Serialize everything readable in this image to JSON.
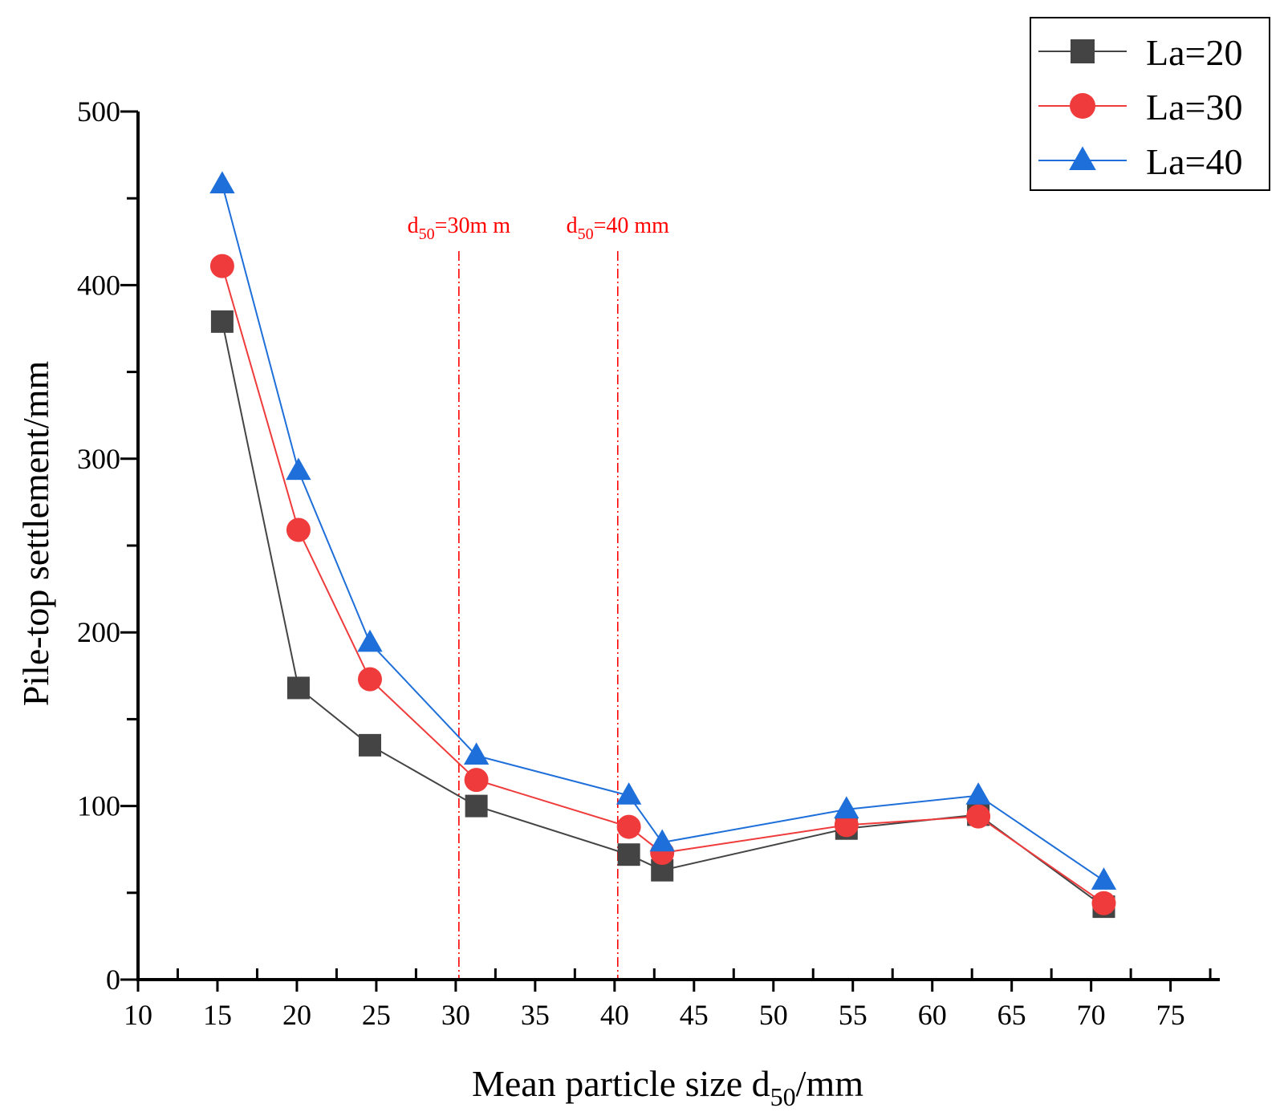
{
  "chart_data": {
    "type": "line",
    "xlabel": "Mean particle size d50/mm",
    "xlabel_parts": {
      "main": "Mean particle size d",
      "sub": "50",
      "tail": "/mm"
    },
    "ylabel": "Pile-top settlement/mm",
    "xlim": [
      10,
      78
    ],
    "ylim": [
      0,
      500
    ],
    "x_ticks": [
      10,
      15,
      20,
      25,
      30,
      35,
      40,
      45,
      50,
      55,
      60,
      65,
      70,
      75
    ],
    "x_tick_labels": [
      "10",
      "15",
      "20",
      "25",
      "30",
      "35",
      "40",
      "45",
      "50",
      "55",
      "60",
      "65",
      "70",
      "75"
    ],
    "y_ticks": [
      0,
      100,
      200,
      300,
      400,
      500
    ],
    "y_tick_labels": [
      "0",
      "100",
      "200",
      "300",
      "400",
      "500"
    ],
    "legend_position": "top-right",
    "series": [
      {
        "name": "La=20",
        "color": "#444444",
        "marker": "square",
        "x": [
          15.3,
          20.1,
          24.6,
          31.3,
          40.9,
          43.0,
          54.6,
          62.9,
          70.8
        ],
        "y": [
          379,
          168,
          135,
          100,
          72,
          63,
          87,
          95,
          42
        ]
      },
      {
        "name": "La=30",
        "color": "#ef3b3b",
        "marker": "circle",
        "x": [
          15.3,
          20.1,
          24.6,
          31.3,
          40.9,
          43.0,
          54.6,
          62.9,
          70.8
        ],
        "y": [
          411,
          259,
          173,
          115,
          88,
          73,
          89,
          94,
          44
        ]
      },
      {
        "name": "La=40",
        "color": "#1e6fd9",
        "marker": "triangle",
        "x": [
          15.3,
          20.1,
          24.6,
          31.3,
          40.9,
          43.0,
          54.6,
          62.9,
          70.8
        ],
        "y": [
          458,
          293,
          194,
          129,
          106,
          79,
          98,
          106,
          57
        ]
      }
    ],
    "reference_lines": [
      {
        "x": 30.2,
        "label_main": "d",
        "label_sub": "50",
        "label_tail": "=30m m",
        "color": "#ff0000"
      },
      {
        "x": 40.2,
        "label_main": "d",
        "label_sub": "50",
        "label_tail": "=40 mm",
        "color": "#ff0000"
      }
    ]
  }
}
